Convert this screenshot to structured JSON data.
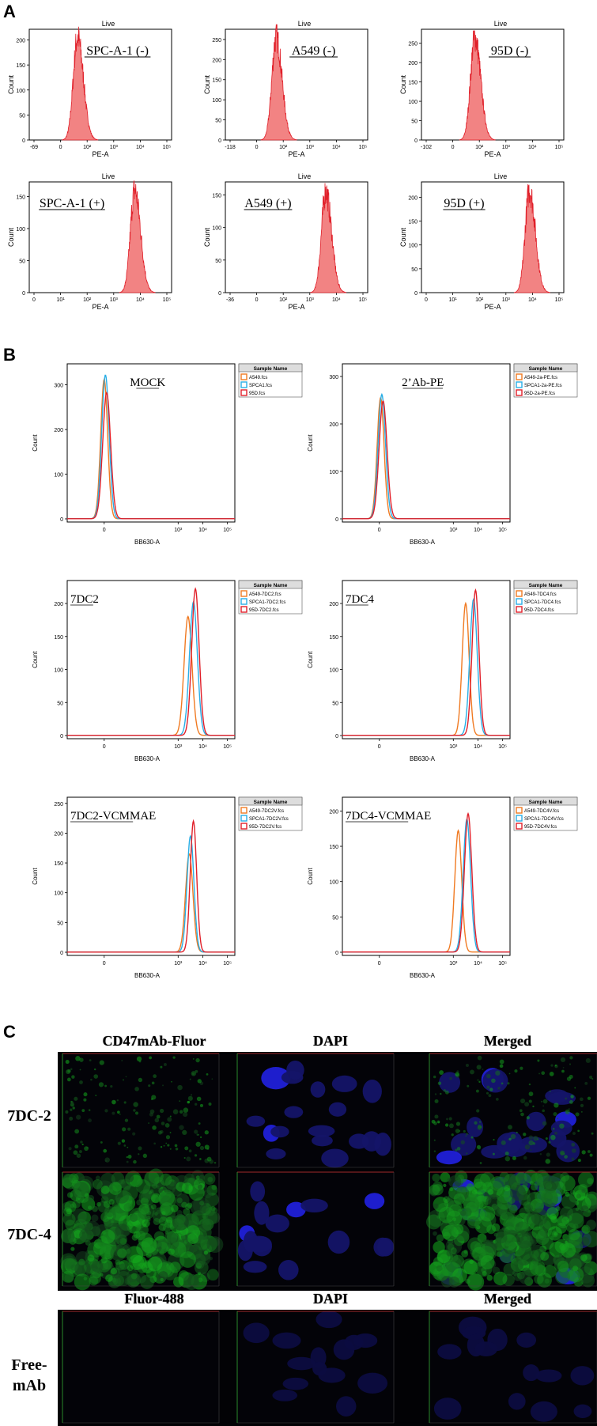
{
  "figure": {
    "panel_labels": {
      "a": "A",
      "b": "B",
      "c": "C"
    }
  },
  "panel_a": {
    "common": {
      "top_label": "Live",
      "x_axis_label": "PE-A",
      "y_axis_label": "Count"
    },
    "plots": [
      {
        "label": "SPC-A-1 (-)",
        "y_ticks": [
          "0",
          "50",
          "100",
          "150",
          "200"
        ],
        "x_ticks": [
          "-69",
          "0",
          "10²",
          "10³",
          "10⁴",
          "10⁵"
        ],
        "peak_log": 1.5,
        "peak_count": 205
      },
      {
        "label": "A549 (-)",
        "y_ticks": [
          "0",
          "50",
          "100",
          "150",
          "200",
          "250"
        ],
        "x_ticks": [
          "-118",
          "0",
          "10²",
          "10³",
          "10⁴",
          "10⁵"
        ],
        "peak_log": 1.6,
        "peak_count": 255
      },
      {
        "label": "95D (-)",
        "y_ticks": [
          "0",
          "50",
          "100",
          "150",
          "200",
          "250"
        ],
        "x_ticks": [
          "-102",
          "0",
          "10²",
          "10³",
          "10⁴",
          "10⁵"
        ],
        "peak_log": 1.7,
        "peak_count": 265
      },
      {
        "label": "SPC-A-1 (+)",
        "y_ticks": [
          "0",
          "50",
          "100",
          "150"
        ],
        "x_ticks": [
          "0",
          "10¹",
          "10²",
          "10³",
          "10⁴",
          "10⁵"
        ],
        "peak_log": 3.75,
        "peak_count": 160
      },
      {
        "label": "A549 (+)",
        "y_ticks": [
          "0",
          "50",
          "100",
          "150"
        ],
        "x_ticks": [
          "-36",
          "0",
          "10²",
          "10³",
          "10⁴",
          "10⁵"
        ],
        "peak_log": 3.55,
        "peak_count": 155
      },
      {
        "label": "95D (+)",
        "y_ticks": [
          "0",
          "50",
          "100",
          "150",
          "200"
        ],
        "x_ticks": [
          "0",
          "10¹",
          "10²",
          "10³",
          "10⁴",
          "10⁵"
        ],
        "peak_log": 3.85,
        "peak_count": 215
      }
    ]
  },
  "panel_b": {
    "common": {
      "x_axis_label": "BB630-A",
      "y_axis_label": "Count",
      "legend_title": "Sample Name",
      "x_ticks": [
        "0",
        "10³",
        "10⁴",
        "10⁵"
      ],
      "colors": [
        "#f07a22",
        "#29aee6",
        "#e0202a"
      ]
    },
    "plots": [
      {
        "label": "MOCK",
        "y_ticks": [
          "0",
          "100",
          "200",
          "300"
        ],
        "ymax": 340,
        "legend": [
          "A549.fcs",
          "SPCA1.fcs",
          "95D.fcs"
        ],
        "peaks": [
          [
            0.0,
            312
          ],
          [
            0.05,
            322
          ],
          [
            0.1,
            282
          ]
        ],
        "widths": [
          0.14,
          0.15,
          0.16
        ]
      },
      {
        "label": "2’Ab-PE",
        "y_ticks": [
          "0",
          "100",
          "200",
          "300"
        ],
        "ymax": 320,
        "legend": [
          "A549-2a-PE.fcs",
          "SPCA1-2a-PE.fcs",
          "95D-2a-PE.fcs"
        ],
        "peaks": [
          [
            0.05,
            255
          ],
          [
            0.1,
            262
          ],
          [
            0.15,
            248
          ]
        ],
        "widths": [
          0.14,
          0.15,
          0.16
        ]
      },
      {
        "label": "7DC2",
        "y_ticks": [
          "0",
          "50",
          "100",
          "150",
          "200"
        ],
        "ymax": 230,
        "legend": [
          "A549-7DC2.fcs",
          "SPCA1-7DC2.fcs",
          "95D-7DC2.fcs"
        ],
        "peaks": [
          [
            3.4,
            180
          ],
          [
            3.62,
            202
          ],
          [
            3.7,
            222
          ]
        ],
        "widths": [
          0.16,
          0.16,
          0.15
        ]
      },
      {
        "label": "7DC4",
        "y_ticks": [
          "0",
          "50",
          "100",
          "150",
          "200"
        ],
        "ymax": 230,
        "legend": [
          "A549-7DC4.fcs",
          "SPCA1-7DC4.fcs",
          "95D-7DC4.fcs"
        ],
        "peaks": [
          [
            3.5,
            200
          ],
          [
            3.82,
            206
          ],
          [
            3.9,
            220
          ]
        ],
        "widths": [
          0.14,
          0.15,
          0.14
        ]
      },
      {
        "label": "7DC2-VCMMAE",
        "y_ticks": [
          "0",
          "50",
          "100",
          "150",
          "200",
          "250"
        ],
        "ymax": 255,
        "legend": [
          "A549-7DC2V.fcs",
          "SPCA1-7DC2V.fcs",
          "95D-7DC2V.fcs"
        ],
        "peaks": [
          [
            3.45,
            165
          ],
          [
            3.5,
            195
          ],
          [
            3.62,
            220
          ]
        ],
        "widths": [
          0.15,
          0.14,
          0.13
        ]
      },
      {
        "label": "7DC4-VCMMAE",
        "y_ticks": [
          "0",
          "50",
          "100",
          "150",
          "200"
        ],
        "ymax": 215,
        "legend": [
          "A549-7DC4V.fcs",
          "SPCA1-7DC4V.fcs",
          "95D-7DC4V.fcs"
        ],
        "peaks": [
          [
            3.2,
            172
          ],
          [
            3.55,
            188
          ],
          [
            3.6,
            196
          ]
        ],
        "widths": [
          0.14,
          0.15,
          0.15
        ]
      }
    ]
  },
  "panel_c": {
    "top_group": {
      "columns": [
        "CD47mAb-Fluor",
        "DAPI",
        "Merged"
      ],
      "rows": [
        "7DC-2",
        "7DC-4"
      ]
    },
    "bottom_group": {
      "columns": [
        "Fluor-488",
        "DAPI",
        "Merged"
      ],
      "rows": [
        "Free-\nmAb"
      ]
    }
  }
}
